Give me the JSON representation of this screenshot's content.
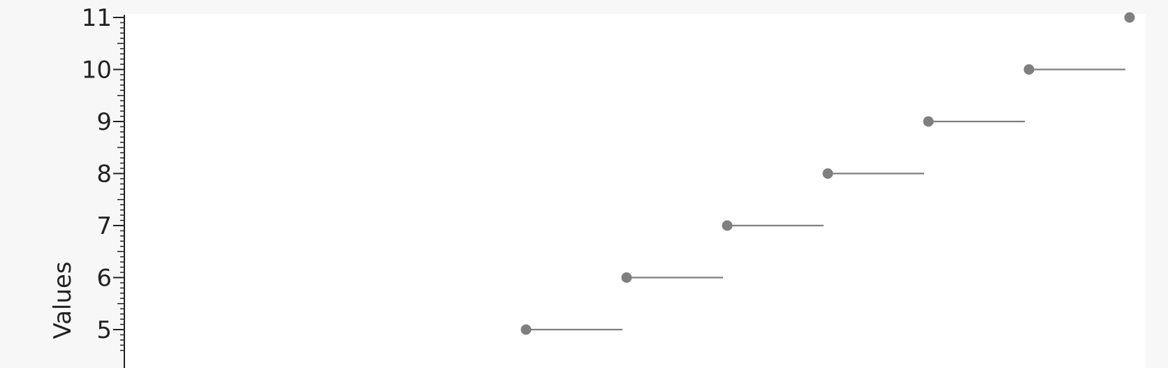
{
  "chart_data": {
    "type": "scatter",
    "title": "",
    "xlabel": "",
    "ylabel": "Values",
    "ylim": [
      4.55,
      11.05
    ],
    "y_ticks": [
      "11",
      "10",
      "9",
      "8",
      "7",
      "6",
      "5"
    ],
    "grid": false,
    "legend": "none",
    "colors": {
      "marker": "#7f7f7f",
      "axis": "#222222",
      "plot_bg": "#ffffff",
      "page_bg": "#f7f7f7"
    },
    "points": [
      {
        "y": 5,
        "step_to_next": true
      },
      {
        "y": 6,
        "step_to_next": true
      },
      {
        "y": 7,
        "step_to_next": true
      },
      {
        "y": 8,
        "step_to_next": true
      },
      {
        "y": 9,
        "step_to_next": true
      },
      {
        "y": 10,
        "step_to_next": true
      },
      {
        "y": 11,
        "step_to_next": false
      }
    ]
  }
}
